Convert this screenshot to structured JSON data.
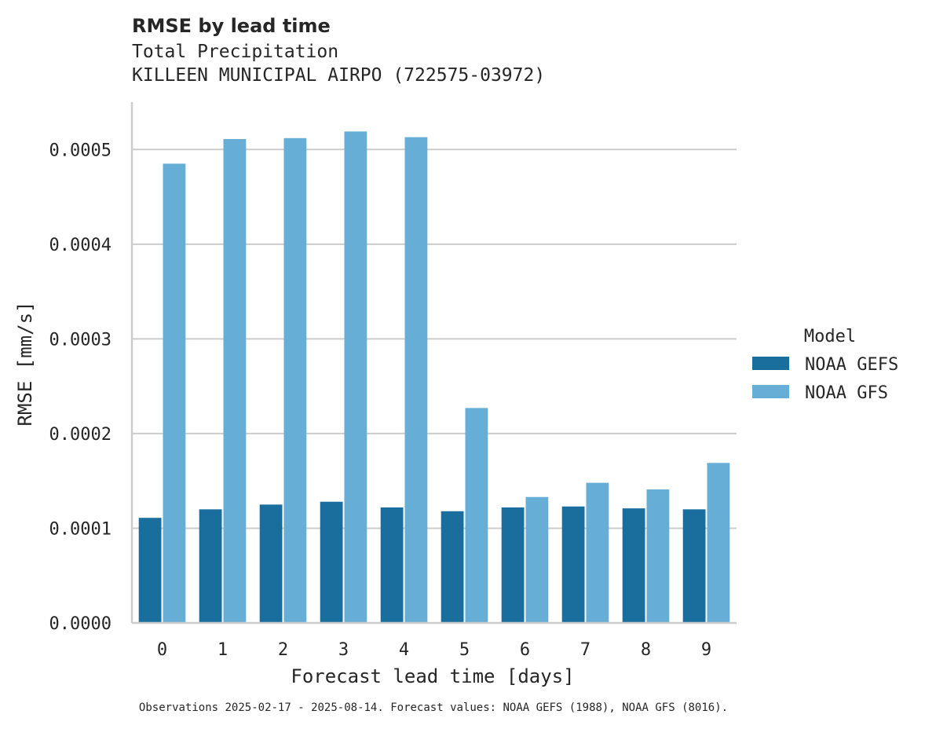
{
  "chart_data": {
    "type": "bar",
    "title": "RMSE by lead time",
    "subtitle_line1": "Total Precipitation",
    "subtitle_line2": "KILLEEN MUNICIPAL AIRPO (722575-03972)",
    "xlabel": "Forecast lead time [days]",
    "ylabel": "RMSE [mm/s]",
    "categories": [
      "0",
      "1",
      "2",
      "3",
      "4",
      "5",
      "6",
      "7",
      "8",
      "9"
    ],
    "ylim": [
      0,
      0.00055
    ],
    "yticks": [
      0.0,
      0.0001,
      0.0002,
      0.0003,
      0.0004,
      0.0005
    ],
    "ytick_labels": [
      "0.0000",
      "0.0001",
      "0.0002",
      "0.0003",
      "0.0004",
      "0.0005"
    ],
    "grid": "horizontal",
    "legend_title": "Model",
    "legend_position": "right",
    "series": [
      {
        "name": "NOAA GEFS",
        "color": "#1a6e9e",
        "values": [
          0.000111,
          0.00012,
          0.000125,
          0.000128,
          0.000122,
          0.000118,
          0.000122,
          0.000123,
          0.000121,
          0.00012
        ]
      },
      {
        "name": "NOAA GFS",
        "color": "#67aed6",
        "values": [
          0.000485,
          0.000511,
          0.000512,
          0.000519,
          0.000513,
          0.000227,
          0.000133,
          0.000148,
          0.000141,
          0.000169
        ]
      }
    ],
    "footnote": "Observations 2025-02-17 - 2025-08-14. Forecast values: NOAA GEFS (1988), NOAA GFS (8016)."
  }
}
